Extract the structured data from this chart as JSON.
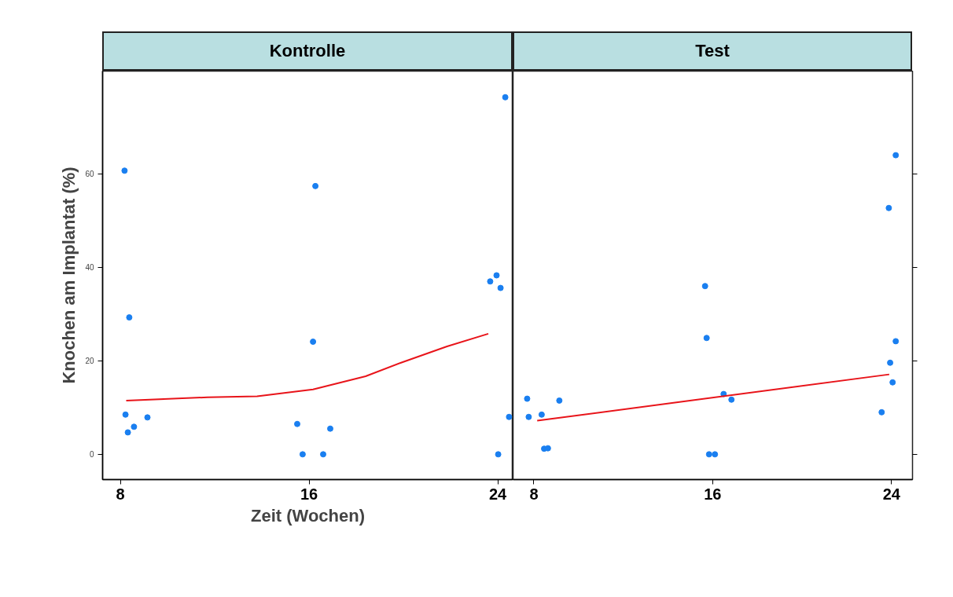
{
  "chart_data": [
    {
      "type": "scatter",
      "title": "Kontrolle",
      "xlabel": "Zeit (Wochen)",
      "ylabel": "Knochen am Implantat (%)",
      "xlim": [
        7.25,
        24.65
      ],
      "xticks": [
        8,
        16,
        24
      ],
      "ylim": [
        -5.4,
        82
      ],
      "yticks": [
        0,
        20,
        40,
        60
      ],
      "grid": false,
      "marker": "circle",
      "series": [
        {
          "color": "#1a7ff0",
          "x": [
            8.18,
            16.27,
            24.32,
            23.95,
            23.68,
            24.12,
            8.38,
            16.17,
            8.22,
            9.15,
            8.58,
            8.32,
            15.5,
            16.9,
            15.73,
            16.6,
            24.02,
            24.48
          ],
          "values": [
            60.7,
            57.4,
            76.4,
            38.3,
            37.0,
            35.6,
            29.3,
            24.1,
            8.5,
            7.9,
            5.9,
            4.7,
            6.5,
            5.5,
            0,
            0,
            0,
            8.0
          ]
        },
        {
          "type": "line",
          "color": "#e8141a",
          "marker": "none",
          "x": [
            8.25,
            11.7,
            13.8,
            16.17,
            18.4,
            19.9,
            21.85,
            23.6
          ],
          "values": [
            11.5,
            12.2,
            12.4,
            13.9,
            16.7,
            19.6,
            23.1,
            25.8
          ]
        }
      ]
    },
    {
      "type": "scatter",
      "title": "Test",
      "xlim": [
        7.07,
        24.94
      ],
      "xticks": [
        8,
        16,
        24
      ],
      "ylim": [
        -5.4,
        82
      ],
      "yticks": [
        0,
        20,
        40,
        60
      ],
      "tick_labels": "x",
      "grid": false,
      "marker": "circle",
      "series": [
        {
          "color": "#1a7ff0",
          "x": [
            7.7,
            7.77,
            8.35,
            9.14,
            8.46,
            8.63,
            15.73,
            15.66,
            24.19,
            23.88,
            15.84,
            16.1,
            16.49,
            16.84,
            23.56,
            23.94,
            24.05,
            24.19
          ],
          "values": [
            11.9,
            8.0,
            8.5,
            11.5,
            1.2,
            1.3,
            24.9,
            36.0,
            64.0,
            52.7,
            0,
            0,
            12.9,
            11.7,
            9.0,
            19.6,
            15.4,
            24.2
          ]
        },
        {
          "type": "line",
          "color": "#e8141a",
          "marker": "none",
          "x": [
            8.15,
            23.9
          ],
          "values": [
            7.2,
            17.1
          ]
        }
      ]
    }
  ]
}
